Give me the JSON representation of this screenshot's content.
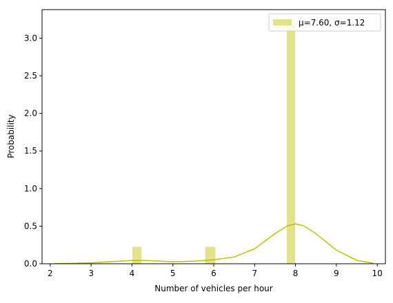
{
  "chart_data": {
    "type": "bar",
    "title": "",
    "xlabel": "Number of vehicles per hour",
    "ylabel": "Probability",
    "xlim": [
      1.8,
      10.2
    ],
    "ylim": [
      0,
      3.38
    ],
    "xticks": [
      2,
      3,
      4,
      5,
      6,
      7,
      8,
      9,
      10
    ],
    "xtick_labels": [
      "2",
      "3",
      "4",
      "5",
      "6",
      "7",
      "8",
      "9",
      "10"
    ],
    "yticks": [
      0.0,
      0.5,
      1.0,
      1.5,
      2.0,
      2.5,
      3.0
    ],
    "ytick_labels": [
      "0.0",
      "0.5",
      "1.0",
      "1.5",
      "2.0",
      "2.5",
      "3.0"
    ],
    "grid": false,
    "legend_position": "top-right",
    "bar_color": "#e3e38c",
    "line_color": "#bfbf00",
    "series": [
      {
        "name": "μ=7.60, σ=1.12",
        "kind": "histogram",
        "bins": [
          {
            "x0": 4.0,
            "x1": 4.24,
            "value": 0.23
          },
          {
            "x0": 5.78,
            "x1": 6.05,
            "value": 0.23
          },
          {
            "x0": 7.78,
            "x1": 8.0,
            "value": 3.2
          }
        ]
      },
      {
        "name": "",
        "kind": "kde",
        "points": [
          [
            2.1,
            0.003
          ],
          [
            2.5,
            0.005
          ],
          [
            3.0,
            0.012
          ],
          [
            3.5,
            0.028
          ],
          [
            4.0,
            0.043
          ],
          [
            4.25,
            0.045
          ],
          [
            4.5,
            0.04
          ],
          [
            5.0,
            0.027
          ],
          [
            5.5,
            0.035
          ],
          [
            6.0,
            0.053
          ],
          [
            6.5,
            0.09
          ],
          [
            7.0,
            0.2
          ],
          [
            7.5,
            0.4
          ],
          [
            7.8,
            0.505
          ],
          [
            8.0,
            0.53
          ],
          [
            8.2,
            0.505
          ],
          [
            8.5,
            0.4
          ],
          [
            9.0,
            0.18
          ],
          [
            9.5,
            0.045
          ],
          [
            9.9,
            0.008
          ]
        ]
      }
    ]
  }
}
